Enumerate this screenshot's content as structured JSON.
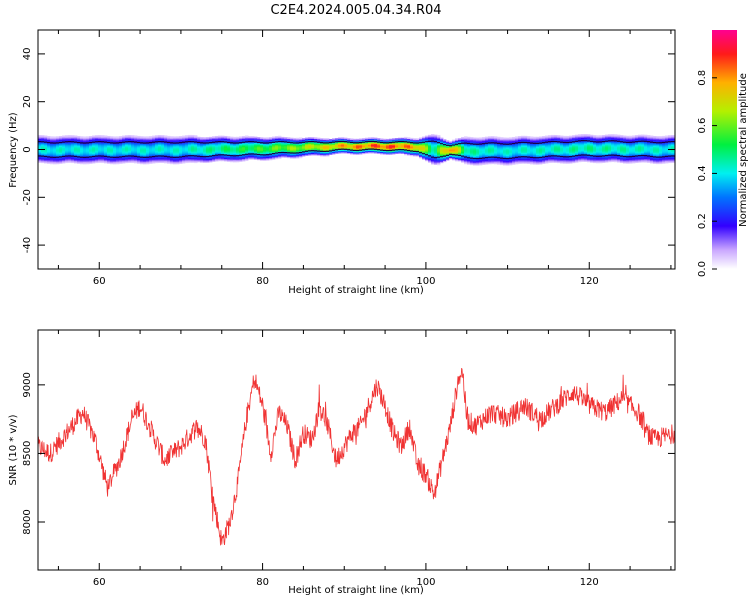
{
  "figure": {
    "title": "C2E4.2024.005.04.34.R04"
  },
  "chart_data": [
    {
      "type": "heatmap",
      "title": "C2E4.2024.005.04.34.R04",
      "xlabel": "Height of straight line (km)",
      "ylabel": "Frequency (Hz)",
      "xlim": [
        52.5,
        130.5
      ],
      "ylim": [
        -50,
        50
      ],
      "x_ticks": [
        60,
        80,
        100,
        120
      ],
      "y_ticks": [
        40,
        20,
        0,
        -20,
        -40
      ],
      "ridge": {
        "description_points_km": [
          52.5,
          60,
          70,
          80,
          85,
          90,
          95,
          99,
          101,
          103,
          105,
          110,
          120,
          130.5
        ],
        "center_hz": [
          0,
          0,
          0,
          0.5,
          1,
          1.5,
          1.5,
          1.2,
          -0.3,
          0,
          -0.5,
          -0.5,
          0.5,
          0
        ],
        "peak_amplitude": [
          0.45,
          0.45,
          0.45,
          0.6,
          0.7,
          0.85,
          0.95,
          0.85,
          0.5,
          0.95,
          0.5,
          0.45,
          0.5,
          0.45
        ],
        "half_width_hz": [
          3,
          3,
          3,
          2.5,
          2,
          1.6,
          1.6,
          1.8,
          3.5,
          1.8,
          3,
          3,
          3,
          3
        ]
      },
      "colorbar": {
        "label": "Normalized spectral amplitude",
        "ticks": [
          "0.0",
          "0.2",
          "0.4",
          "0.6",
          "0.8"
        ],
        "tick_values": [
          0.0,
          0.2,
          0.4,
          0.6,
          0.8
        ],
        "range": [
          0,
          1
        ]
      }
    },
    {
      "type": "line",
      "xlabel": "Height of straight line (km)",
      "ylabel": "SNR (10 * v/v)",
      "xlim": [
        52.5,
        130.5
      ],
      "ylim": [
        7650,
        9400
      ],
      "x_ticks": [
        60,
        80,
        100,
        120
      ],
      "y_ticks": [
        8000,
        8500,
        9000
      ],
      "color": "#f03232",
      "series": [
        {
          "name": "SNR",
          "x": [
            52.5,
            54,
            56,
            58,
            59.5,
            61,
            62.5,
            64,
            65,
            66.5,
            68,
            70,
            72,
            73,
            74,
            75,
            76,
            77,
            78,
            79,
            80,
            81,
            82,
            83,
            84,
            85,
            86,
            87,
            88,
            89,
            90,
            91,
            92,
            93,
            94,
            95,
            96,
            97,
            98,
            99,
            100,
            101,
            102,
            103,
            104,
            104.5,
            105,
            106,
            108,
            110,
            112,
            114,
            116,
            118,
            120,
            122,
            124,
            126,
            127,
            128,
            130.5
          ],
          "values": [
            8550,
            8500,
            8650,
            8800,
            8600,
            8250,
            8450,
            8750,
            8850,
            8650,
            8450,
            8550,
            8700,
            8600,
            8150,
            7850,
            8000,
            8300,
            8750,
            9050,
            8850,
            8500,
            8800,
            8700,
            8450,
            8650,
            8600,
            8850,
            8700,
            8450,
            8550,
            8650,
            8700,
            8850,
            9000,
            8850,
            8650,
            8550,
            8700,
            8400,
            8350,
            8200,
            8450,
            8700,
            9050,
            9100,
            8750,
            8700,
            8800,
            8750,
            8850,
            8750,
            8850,
            8950,
            8850,
            8800,
            8900,
            8800,
            8650,
            8600,
            8650
          ],
          "noise_amplitude": 75
        }
      ]
    }
  ]
}
